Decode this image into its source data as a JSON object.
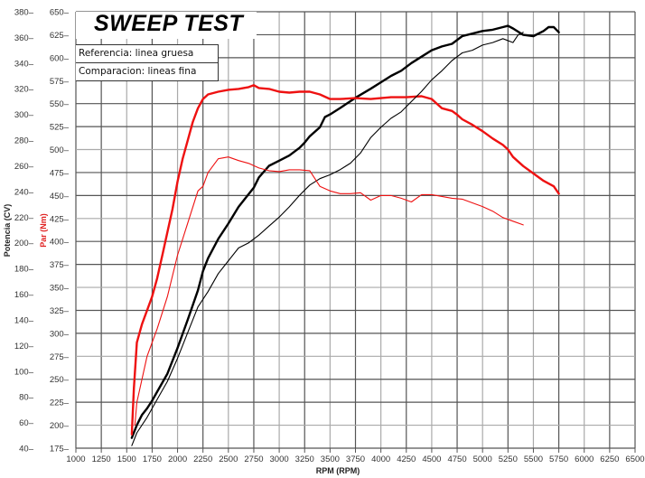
{
  "chart_data": {
    "type": "line",
    "title": "SWEEP TEST",
    "legend": [
      "Referencia: linea gruesa",
      "Comparacion: lineas fina"
    ],
    "legend_placement": "top-left",
    "xlabel": "RPM (RPM)",
    "ylabel_left_outer": "Potencia (CV)",
    "ylabel_left_inner": "Par (Nm)",
    "xlim": [
      1000,
      6500
    ],
    "ylim_power": [
      40,
      380
    ],
    "ylim_torque": [
      175,
      650
    ],
    "x_ticks": [
      "1000",
      "1250",
      "1500",
      "1750",
      "2000",
      "2250",
      "2500",
      "2750",
      "3000",
      "3250",
      "3500",
      "3750",
      "4000",
      "4250",
      "4500",
      "4750",
      "5000",
      "5250",
      "5500",
      "5750",
      "6000",
      "6250",
      "6500"
    ],
    "power_ticks": [
      "380",
      "360",
      "340",
      "320",
      "300",
      "280",
      "260",
      "240",
      "220",
      "200",
      "180",
      "160",
      "140",
      "120",
      "100",
      "80",
      "60",
      "40"
    ],
    "torque_ticks": [
      "650",
      "625",
      "600",
      "575",
      "550",
      "525",
      "500",
      "475",
      "450",
      "425",
      "400",
      "375",
      "350",
      "325",
      "300",
      "275",
      "250",
      "225",
      "200",
      "175"
    ],
    "grid": true,
    "colors": {
      "power": "#000000",
      "torque": "#ee1111",
      "grid": "#555555",
      "grid_light": "#aaaaaa"
    },
    "series": [
      {
        "name": "Potencia referencia (linea gruesa)",
        "axis": "power",
        "style": "thick",
        "x": [
          1550,
          1600,
          1650,
          1700,
          1750,
          1800,
          1900,
          2000,
          2100,
          2200,
          2250,
          2300,
          2400,
          2500,
          2600,
          2700,
          2750,
          2800,
          2900,
          3000,
          3100,
          3200,
          3250,
          3300,
          3400,
          3450,
          3500,
          3600,
          3750,
          3900,
          4000,
          4100,
          4200,
          4300,
          4400,
          4500,
          4600,
          4700,
          4800,
          4900,
          5000,
          5100,
          5200,
          5250,
          5300,
          5400,
          5500,
          5600,
          5650,
          5700,
          5750
        ],
        "values": [
          48,
          58,
          66,
          71,
          77,
          84,
          98,
          118,
          140,
          163,
          178,
          188,
          203,
          215,
          228,
          238,
          243,
          251,
          260,
          264,
          268,
          274,
          278,
          283,
          290,
          298,
          300,
          305,
          313,
          320,
          325,
          330,
          334,
          340,
          345,
          350,
          353,
          355,
          361,
          363,
          365,
          366,
          368,
          369,
          367,
          362,
          361,
          365,
          368,
          368,
          364
        ]
      },
      {
        "name": "Par referencia (linea gruesa)",
        "axis": "torque",
        "style": "thick",
        "x": [
          1550,
          1570,
          1600,
          1650,
          1700,
          1750,
          1800,
          1850,
          1900,
          1950,
          2000,
          2050,
          2100,
          2150,
          2200,
          2250,
          2300,
          2400,
          2500,
          2600,
          2700,
          2750,
          2800,
          2900,
          3000,
          3100,
          3200,
          3300,
          3400,
          3500,
          3600,
          3750,
          3900,
          4000,
          4100,
          4250,
          4400,
          4500,
          4550,
          4600,
          4700,
          4750,
          4800,
          4900,
          5000,
          5100,
          5200,
          5250,
          5300,
          5400,
          5500,
          5600,
          5700,
          5750
        ],
        "values": [
          190,
          240,
          290,
          310,
          325,
          340,
          360,
          385,
          410,
          435,
          465,
          490,
          510,
          530,
          545,
          555,
          560,
          563,
          565,
          566,
          568,
          570,
          567,
          566,
          563,
          562,
          563,
          563,
          560,
          555,
          555,
          556,
          555,
          556,
          557,
          557,
          558,
          555,
          550,
          545,
          542,
          538,
          533,
          527,
          520,
          512,
          505,
          500,
          492,
          482,
          474,
          466,
          460,
          452
        ]
      },
      {
        "name": "Potencia comparacion (linea fina)",
        "axis": "power",
        "style": "thin",
        "x": [
          1550,
          1600,
          1700,
          1800,
          1900,
          2000,
          2100,
          2200,
          2300,
          2400,
          2500,
          2600,
          2700,
          2800,
          2900,
          3000,
          3100,
          3200,
          3300,
          3400,
          3500,
          3600,
          3700,
          3800,
          3900,
          4000,
          4100,
          4200,
          4300,
          4400,
          4500,
          4600,
          4700,
          4800,
          4900,
          5000,
          5100,
          5200,
          5300,
          5350,
          5400
        ],
        "values": [
          42,
          52,
          64,
          78,
          92,
          110,
          130,
          150,
          162,
          176,
          186,
          196,
          200,
          206,
          213,
          220,
          228,
          237,
          245,
          250,
          253,
          257,
          262,
          270,
          282,
          290,
          297,
          302,
          310,
          318,
          327,
          334,
          342,
          348,
          350,
          354,
          356,
          359,
          356,
          362,
          364
        ]
      },
      {
        "name": "Par comparacion (linea fina)",
        "axis": "torque",
        "style": "thin",
        "x": [
          1580,
          1600,
          1700,
          1800,
          1900,
          2000,
          2100,
          2200,
          2250,
          2300,
          2400,
          2500,
          2600,
          2700,
          2800,
          2900,
          3000,
          3100,
          3200,
          3300,
          3400,
          3500,
          3600,
          3700,
          3800,
          3900,
          4000,
          4100,
          4200,
          4300,
          4400,
          4500,
          4600,
          4700,
          4800,
          4900,
          5000,
          5100,
          5200,
          5300,
          5400
        ],
        "values": [
          200,
          225,
          275,
          305,
          340,
          385,
          420,
          455,
          460,
          475,
          490,
          492,
          488,
          485,
          480,
          477,
          476,
          478,
          478,
          477,
          460,
          455,
          452,
          452,
          453,
          445,
          450,
          450,
          447,
          443,
          451,
          451,
          449,
          447,
          446,
          442,
          438,
          433,
          426,
          422,
          418
        ]
      }
    ]
  }
}
